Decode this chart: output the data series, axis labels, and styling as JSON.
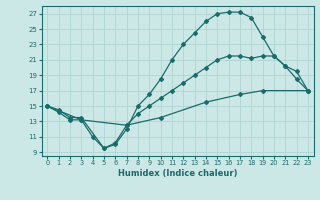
{
  "xlabel": "Humidex (Indice chaleur)",
  "bg_color": "#cce8e6",
  "line_color": "#1a6b6b",
  "grid_color": "#b0d4d2",
  "xlim": [
    -0.5,
    23.5
  ],
  "ylim": [
    8.5,
    28.0
  ],
  "xticks": [
    0,
    1,
    2,
    3,
    4,
    5,
    6,
    7,
    8,
    9,
    10,
    11,
    12,
    13,
    14,
    15,
    16,
    17,
    18,
    19,
    20,
    21,
    22,
    23
  ],
  "yticks": [
    9,
    11,
    13,
    15,
    17,
    19,
    21,
    23,
    25,
    27
  ],
  "line1_x": [
    0,
    1,
    2,
    3,
    4,
    5,
    6,
    7,
    8,
    9,
    10,
    11,
    12,
    13,
    14,
    15,
    16,
    17,
    18,
    19,
    20,
    21,
    22,
    23
  ],
  "line1_y": [
    15.0,
    14.2,
    13.2,
    13.2,
    11.0,
    9.5,
    10.0,
    12.0,
    15.0,
    16.5,
    18.5,
    21.0,
    23.0,
    24.5,
    26.0,
    27.0,
    27.2,
    27.2,
    26.5,
    24.0,
    21.5,
    20.2,
    18.5,
    17.0
  ],
  "line2_x": [
    0,
    1,
    2,
    3,
    5,
    6,
    7,
    8,
    9,
    10,
    11,
    12,
    13,
    14,
    15,
    16,
    17,
    18,
    19,
    20,
    21,
    22,
    23
  ],
  "line2_y": [
    15.0,
    14.5,
    13.5,
    13.5,
    9.5,
    10.2,
    12.5,
    14.0,
    15.0,
    16.0,
    17.0,
    18.0,
    19.0,
    20.0,
    21.0,
    21.5,
    21.5,
    21.2,
    21.5,
    21.5,
    20.2,
    19.5,
    17.0
  ],
  "line3_x": [
    0,
    3,
    7,
    10,
    14,
    17,
    19,
    23
  ],
  "line3_y": [
    15.0,
    13.2,
    12.5,
    13.5,
    15.5,
    16.5,
    17.0,
    17.0
  ]
}
